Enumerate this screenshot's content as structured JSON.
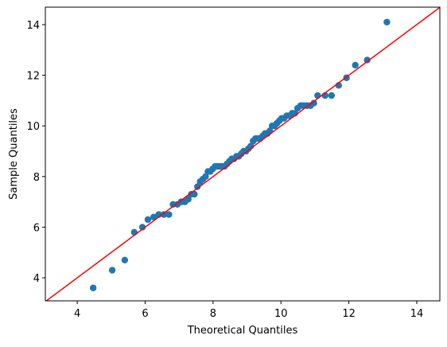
{
  "chart_data": {
    "type": "scatter",
    "xlabel": "Theoretical Quantiles",
    "ylabel": "Sample Quantiles",
    "x": [
      4.47,
      5.03,
      5.4,
      5.68,
      5.92,
      6.08,
      6.25,
      6.4,
      6.55,
      6.7,
      6.82,
      6.95,
      7.06,
      7.17,
      7.27,
      7.36,
      7.45,
      7.54,
      7.62,
      7.7,
      7.78,
      7.85,
      7.92,
      7.99,
      8.06,
      8.13,
      8.2,
      8.27,
      8.34,
      8.41,
      8.48,
      8.55,
      8.62,
      8.69,
      8.76,
      8.83,
      8.9,
      8.97,
      9.04,
      9.11,
      9.18,
      9.25,
      9.32,
      9.39,
      9.46,
      9.53,
      9.6,
      9.67,
      9.74,
      9.81,
      9.88,
      9.95,
      10.02,
      10.09,
      10.17,
      10.25,
      10.33,
      10.41,
      10.49,
      10.58,
      10.67,
      10.77,
      10.87,
      10.97,
      11.08,
      11.3,
      11.49,
      11.7,
      11.93,
      12.19,
      12.54,
      13.12
    ],
    "values": [
      3.6,
      4.3,
      4.7,
      5.8,
      6.0,
      6.3,
      6.4,
      6.5,
      6.5,
      6.5,
      6.9,
      6.9,
      7.0,
      7.0,
      7.1,
      7.3,
      7.3,
      7.6,
      7.8,
      7.9,
      8.0,
      8.2,
      8.2,
      8.3,
      8.4,
      8.4,
      8.4,
      8.4,
      8.4,
      8.5,
      8.6,
      8.7,
      8.7,
      8.8,
      8.8,
      8.9,
      9.0,
      9.0,
      9.1,
      9.2,
      9.4,
      9.5,
      9.5,
      9.5,
      9.6,
      9.7,
      9.7,
      9.8,
      10.0,
      10.0,
      10.1,
      10.2,
      10.3,
      10.3,
      10.4,
      10.4,
      10.5,
      10.5,
      10.7,
      10.8,
      10.8,
      10.8,
      10.8,
      10.9,
      11.2,
      11.2,
      11.2,
      11.6,
      11.9,
      12.4,
      12.6,
      14.1
    ],
    "color": "#1f77b4",
    "line_color": "red",
    "xlim": [
      3.06,
      14.68
    ],
    "ylim": [
      3.09,
      14.69
    ],
    "xticks": [
      4,
      6,
      8,
      10,
      12,
      14
    ],
    "yticks": [
      4,
      6,
      8,
      10,
      12,
      14
    ]
  }
}
